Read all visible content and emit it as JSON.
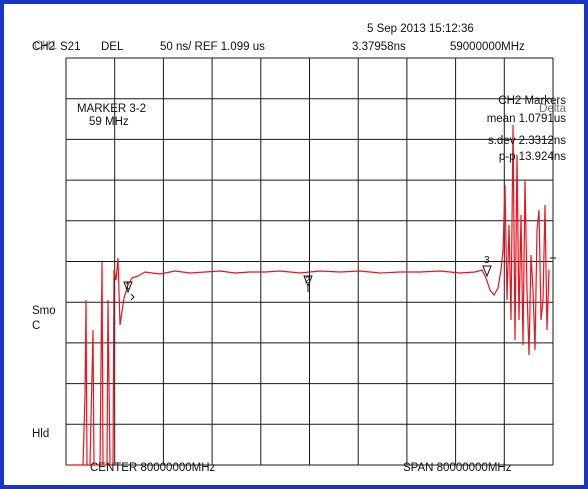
{
  "colors": {
    "frame": "#1a33c8",
    "trace": "#e8141e",
    "grid": "#1a1a1a",
    "background": "#ffffff"
  },
  "header": {
    "channel": "CH2",
    "channel_overlay": "CH1",
    "param": "S21",
    "format": "DEL",
    "scale": "50 ns/ REF 1.099 us",
    "date": "5 Sep 2013  15:12:36",
    "marker_value": "3.37958ns",
    "marker_freq": "59000000MHz"
  },
  "marker_box": {
    "title": "MARKER 3-2",
    "value": "59 MHz"
  },
  "stats": {
    "title": "CH2 Markers",
    "title_overlay": "Delta",
    "mean": "mean 1.0791us",
    "sdev": "s.dev 2.3312ns",
    "pp": "p-p 13.924ns"
  },
  "side_labels": {
    "smo": "Smo",
    "c": "C",
    "hld": "Hld"
  },
  "footer": {
    "center": "CENTER 80000000MHz",
    "span": "SPAN 80000000MHz"
  },
  "markers": [
    "1",
    "2",
    "3"
  ],
  "trace": {
    "description": "group delay trace",
    "divisions_x": 10,
    "divisions_y": 10
  }
}
